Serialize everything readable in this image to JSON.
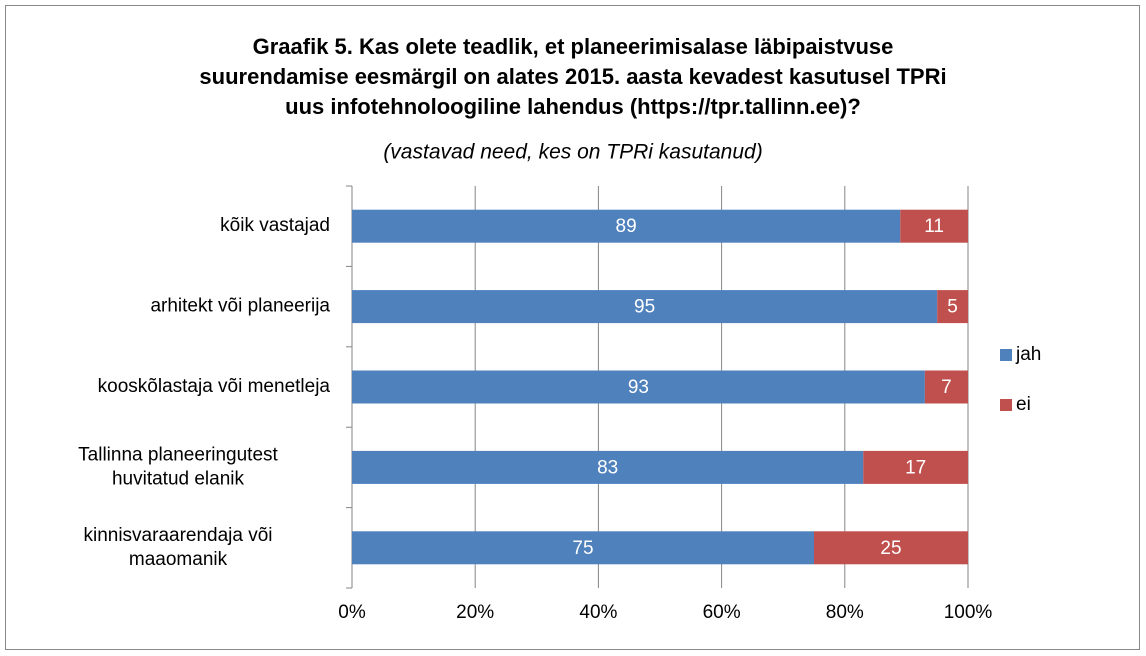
{
  "chart_data": {
    "type": "stacked-barh",
    "title": [
      "Graafik 5. Kas olete teadlik, et planeerimisalase läbipaistvuse",
      "suurendamise eesmärgil on alates 2015. aasta kevadest kasutusel TPRi",
      "uus infotehnoloogiline lahendus (https://tpr.tallinn.ee)?"
    ],
    "subtitle": "(vastavad need, kes on TPRi kasutanud)",
    "categories": [
      [
        "kõik vastajad"
      ],
      [
        "arhitekt või planeerija"
      ],
      [
        "kooskõlastaja või menetleja"
      ],
      [
        "Tallinna planeeringutest",
        "huvitatud elanik"
      ],
      [
        "kinnisvaraarendaja või",
        "maaomanik"
      ]
    ],
    "series": [
      {
        "name": "jah",
        "color": "#4f81bd",
        "values": [
          89,
          95,
          93,
          83,
          75
        ]
      },
      {
        "name": "ei",
        "color": "#c0504d",
        "values": [
          11,
          5,
          7,
          17,
          25
        ]
      }
    ],
    "xlim": [
      0,
      100
    ],
    "xticks": [
      {
        "value": 0,
        "label": "0%"
      },
      {
        "value": 20,
        "label": "20%"
      },
      {
        "value": 40,
        "label": "40%"
      },
      {
        "value": 60,
        "label": "60%"
      },
      {
        "value": 80,
        "label": "80%"
      },
      {
        "value": 100,
        "label": "100%"
      }
    ],
    "grid": true,
    "legend": "right"
  }
}
